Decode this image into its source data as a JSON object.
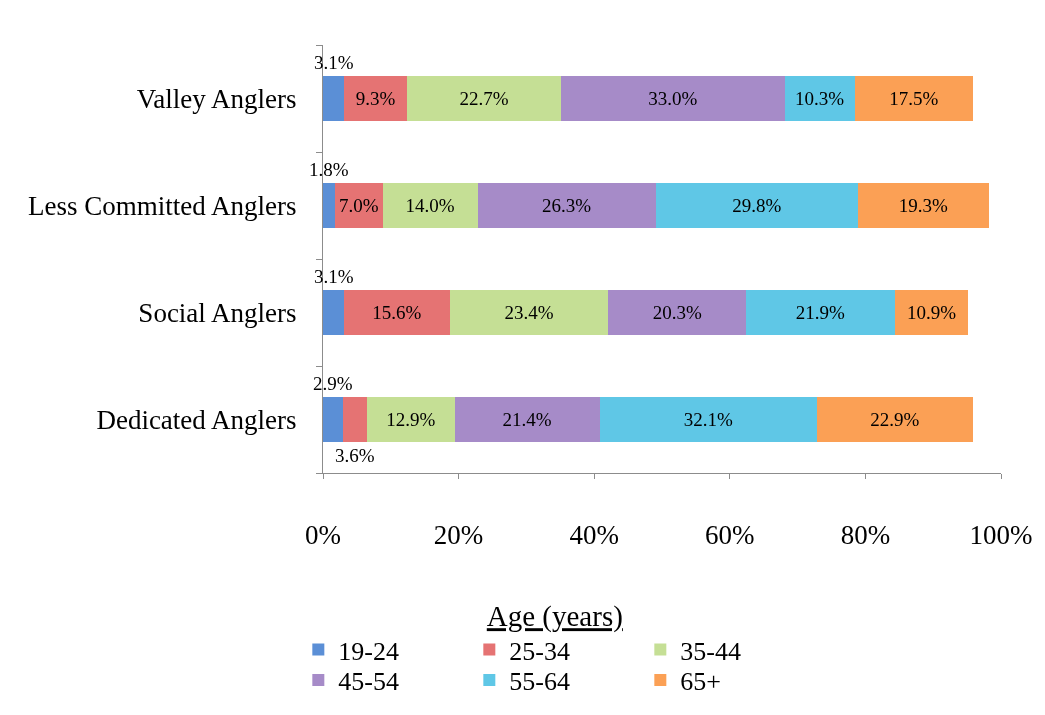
{
  "chart_data": {
    "type": "bar",
    "orientation": "horizontal",
    "stacked": true,
    "categories": [
      "Valley Anglers",
      "Less Committed Anglers",
      "Social Anglers",
      "Dedicated Anglers"
    ],
    "legend_title": "Age (years)",
    "series": [
      {
        "name": "19-24",
        "color": "#5b8fd6",
        "values": [
          3.1,
          1.8,
          3.1,
          2.9
        ],
        "value_labels": [
          "3.1%",
          "1.8%",
          "3.1%",
          "2.9%"
        ]
      },
      {
        "name": "25-34",
        "color": "#e57373",
        "values": [
          9.3,
          7.0,
          15.6,
          3.6
        ],
        "value_labels": [
          "9.3%",
          "7.0%",
          "15.6%",
          "3.6%"
        ]
      },
      {
        "name": "35-44",
        "color": "#c5df95",
        "values": [
          22.7,
          14.0,
          23.4,
          12.9
        ],
        "value_labels": [
          "22.7%",
          "14.0%",
          "23.4%",
          "12.9%"
        ]
      },
      {
        "name": "45-54",
        "color": "#a68bc8",
        "values": [
          33.0,
          26.3,
          20.3,
          21.4
        ],
        "value_labels": [
          "33.0%",
          "26.3%",
          "20.3%",
          "21.4%"
        ]
      },
      {
        "name": "55-64",
        "color": "#5fc7e6",
        "values": [
          10.3,
          29.8,
          21.9,
          32.1
        ],
        "value_labels": [
          "10.3%",
          "29.8%",
          "21.9%",
          "32.1%"
        ]
      },
      {
        "name": "65+",
        "color": "#fba055",
        "values": [
          17.5,
          19.3,
          10.9,
          22.9
        ],
        "value_labels": [
          "17.5%",
          "19.3%",
          "10.9%",
          "22.9%"
        ]
      }
    ],
    "xlim": [
      0,
      100
    ],
    "xticks": [
      {
        "value": 0,
        "label": "0%"
      },
      {
        "value": 20,
        "label": "20%"
      },
      {
        "value": 40,
        "label": "40%"
      },
      {
        "value": 60,
        "label": "60%"
      },
      {
        "value": 80,
        "label": "80%"
      },
      {
        "value": 100,
        "label": "100%"
      }
    ],
    "grid": false,
    "legend": "bottom"
  }
}
